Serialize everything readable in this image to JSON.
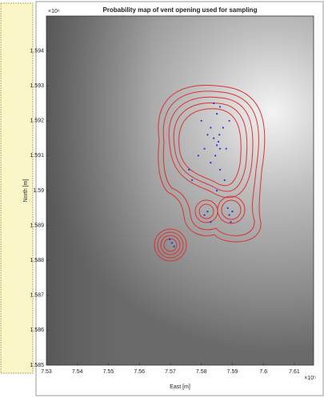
{
  "chart_data": {
    "type": "scatter",
    "title": "Probability map of vent opening used for sampling",
    "xlabel": "East [m]",
    "ylabel": "North [m]",
    "x_multiplier": "×10⁵",
    "y_multiplier": "×10⁶",
    "xlim": [
      7.53,
      7.6162
    ],
    "ylim": [
      1.585,
      1.595
    ],
    "xticks": [
      7.53,
      7.54,
      7.55,
      7.56,
      7.57,
      7.58,
      7.59,
      7.6,
      7.61
    ],
    "yticks": [
      1.585,
      1.586,
      1.587,
      1.588,
      1.589,
      1.59,
      1.591,
      1.592,
      1.593,
      1.594
    ],
    "series": [
      {
        "color": "#2233dd",
        "x": [
          7.585,
          7.584,
          7.586,
          7.5855,
          7.583,
          7.587,
          7.585,
          7.584,
          7.586,
          7.582,
          7.588,
          7.583,
          7.586,
          7.581,
          7.589,
          7.5845,
          7.5858,
          7.58,
          7.5875,
          7.579,
          7.576,
          7.577,
          7.585,
          7.582,
          7.583,
          7.581,
          7.5885,
          7.589,
          7.5895,
          7.59,
          7.5705,
          7.5712,
          7.5698
        ],
        "values": [
          1.5913,
          1.5915,
          1.5912,
          1.5914,
          1.5918,
          1.5918,
          1.5922,
          1.5925,
          1.5924,
          1.5916,
          1.5912,
          1.5908,
          1.5906,
          1.5912,
          1.592,
          1.591,
          1.5916,
          1.592,
          1.5903,
          1.591,
          1.5906,
          1.5903,
          1.59,
          1.5894,
          1.5891,
          1.5893,
          1.5895,
          1.5893,
          1.5891,
          1.5894,
          1.5885,
          1.5884,
          1.5886
        ]
      }
    ]
  }
}
